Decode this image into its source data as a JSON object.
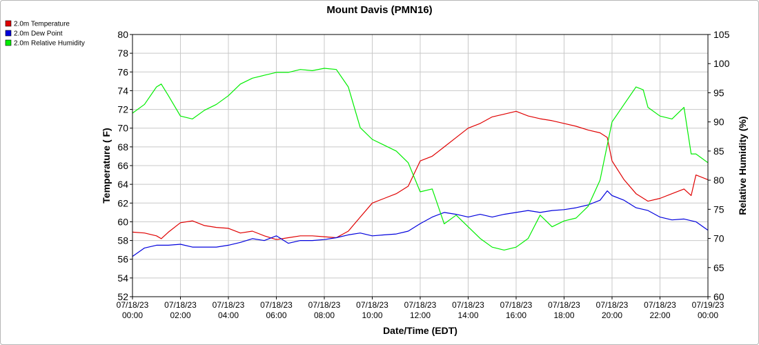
{
  "chart_data": {
    "type": "line",
    "title": "Mount Davis (PMN16)",
    "xlabel": "Date/Time (EDT)",
    "ylabel": "Temperature ( F)",
    "y2label": "Relative Humidity (%)",
    "ylim": [
      52,
      80
    ],
    "y2lim": [
      60,
      105
    ],
    "yticks": [
      52,
      54,
      56,
      58,
      60,
      62,
      64,
      66,
      68,
      70,
      72,
      74,
      76,
      78,
      80
    ],
    "y2ticks": [
      60,
      65,
      70,
      75,
      80,
      85,
      90,
      95,
      100,
      105
    ],
    "x_range_hours": [
      0,
      24
    ],
    "x_ticks": [
      {
        "hour": 0,
        "date": "07/18/23",
        "time": "00:00"
      },
      {
        "hour": 2,
        "date": "07/18/23",
        "time": "02:00"
      },
      {
        "hour": 4,
        "date": "07/18/23",
        "time": "04:00"
      },
      {
        "hour": 6,
        "date": "07/18/23",
        "time": "06:00"
      },
      {
        "hour": 8,
        "date": "07/18/23",
        "time": "08:00"
      },
      {
        "hour": 10,
        "date": "07/18/23",
        "time": "10:00"
      },
      {
        "hour": 12,
        "date": "07/18/23",
        "time": "12:00"
      },
      {
        "hour": 14,
        "date": "07/18/23",
        "time": "14:00"
      },
      {
        "hour": 16,
        "date": "07/18/23",
        "time": "16:00"
      },
      {
        "hour": 18,
        "date": "07/18/23",
        "time": "18:00"
      },
      {
        "hour": 20,
        "date": "07/18/23",
        "time": "20:00"
      },
      {
        "hour": 22,
        "date": "07/18/23",
        "time": "22:00"
      },
      {
        "hour": 24,
        "date": "07/19/23",
        "time": "00:00"
      }
    ],
    "grid": true,
    "legend_position": "top-left",
    "series": [
      {
        "name": "2.0m Temperature",
        "color": "#e00000",
        "axis": "left",
        "x": [
          0,
          0.5,
          1.0,
          1.2,
          1.5,
          2.0,
          2.5,
          3.0,
          3.5,
          4.0,
          4.5,
          5.0,
          5.5,
          6.0,
          6.5,
          7.0,
          7.5,
          8.0,
          8.5,
          9.0,
          9.5,
          10.0,
          10.5,
          11.0,
          11.5,
          12.0,
          12.5,
          13.0,
          13.5,
          14.0,
          14.5,
          15.0,
          15.5,
          16.0,
          16.5,
          17.0,
          17.5,
          18.0,
          18.5,
          19.0,
          19.5,
          19.8,
          20.0,
          20.5,
          21.0,
          21.5,
          22.0,
          22.5,
          23.0,
          23.3,
          23.5,
          24.0
        ],
        "values": [
          58.9,
          58.8,
          58.5,
          58.2,
          58.9,
          59.9,
          60.1,
          59.6,
          59.4,
          59.3,
          58.8,
          59.0,
          58.5,
          58.1,
          58.3,
          58.5,
          58.5,
          58.4,
          58.3,
          59.0,
          60.5,
          62.0,
          62.5,
          63.0,
          63.8,
          66.5,
          67.0,
          68.0,
          69.0,
          70.0,
          70.5,
          71.2,
          71.5,
          71.8,
          71.3,
          71.0,
          70.8,
          70.5,
          70.2,
          69.8,
          69.5,
          69.0,
          66.5,
          64.5,
          63.0,
          62.2,
          62.5,
          63.0,
          63.5,
          62.8,
          65.0,
          64.5
        ]
      },
      {
        "name": "2.0m Dew Point",
        "color": "#0000dd",
        "axis": "left",
        "x": [
          0,
          0.5,
          1.0,
          1.5,
          2.0,
          2.5,
          3.0,
          3.5,
          4.0,
          4.5,
          5.0,
          5.5,
          6.0,
          6.5,
          7.0,
          7.5,
          8.0,
          8.5,
          9.0,
          9.5,
          10.0,
          10.5,
          11.0,
          11.5,
          12.0,
          12.5,
          13.0,
          13.5,
          14.0,
          14.5,
          15.0,
          15.5,
          16.0,
          16.5,
          17.0,
          17.5,
          18.0,
          18.5,
          19.0,
          19.5,
          19.8,
          20.0,
          20.5,
          21.0,
          21.5,
          22.0,
          22.5,
          23.0,
          23.5,
          24.0
        ],
        "values": [
          56.3,
          57.2,
          57.5,
          57.5,
          57.6,
          57.3,
          57.3,
          57.3,
          57.5,
          57.8,
          58.2,
          58.0,
          58.5,
          57.7,
          58.0,
          58.0,
          58.1,
          58.3,
          58.6,
          58.8,
          58.5,
          58.6,
          58.7,
          59.0,
          59.8,
          60.5,
          61.0,
          60.8,
          60.5,
          60.8,
          60.5,
          60.8,
          61.0,
          61.2,
          61.0,
          61.2,
          61.3,
          61.5,
          61.8,
          62.3,
          63.3,
          62.8,
          62.3,
          61.5,
          61.2,
          60.5,
          60.2,
          60.3,
          60.0,
          59.1
        ]
      },
      {
        "name": "2.0m Relative Humidity",
        "color": "#00ee00",
        "axis": "right",
        "x": [
          0,
          0.5,
          1.0,
          1.2,
          1.5,
          2.0,
          2.5,
          3.0,
          3.5,
          4.0,
          4.5,
          5.0,
          5.5,
          6.0,
          6.5,
          7.0,
          7.5,
          8.0,
          8.5,
          9.0,
          9.5,
          10.0,
          10.5,
          11.0,
          11.5,
          12.0,
          12.5,
          13.0,
          13.5,
          14.0,
          14.5,
          15.0,
          15.5,
          16.0,
          16.5,
          17.0,
          17.5,
          18.0,
          18.5,
          19.0,
          19.5,
          20.0,
          20.5,
          21.0,
          21.3,
          21.5,
          22.0,
          22.5,
          23.0,
          23.3,
          23.5,
          24.0
        ],
        "values": [
          91.5,
          93.0,
          96.0,
          96.5,
          94.5,
          91.0,
          90.5,
          92.0,
          93.0,
          94.5,
          96.5,
          97.5,
          98.0,
          98.5,
          98.5,
          99.0,
          98.8,
          99.2,
          99.0,
          96.0,
          89.0,
          87.0,
          86.0,
          85.0,
          83.0,
          78.0,
          78.5,
          72.5,
          74.0,
          72.0,
          70.0,
          68.5,
          68.0,
          68.5,
          70.0,
          74.0,
          72.0,
          73.0,
          73.5,
          75.5,
          80.0,
          90.0,
          93.0,
          96.0,
          95.5,
          92.5,
          91.0,
          90.5,
          92.5,
          84.5,
          84.5,
          83.0
        ]
      }
    ]
  }
}
